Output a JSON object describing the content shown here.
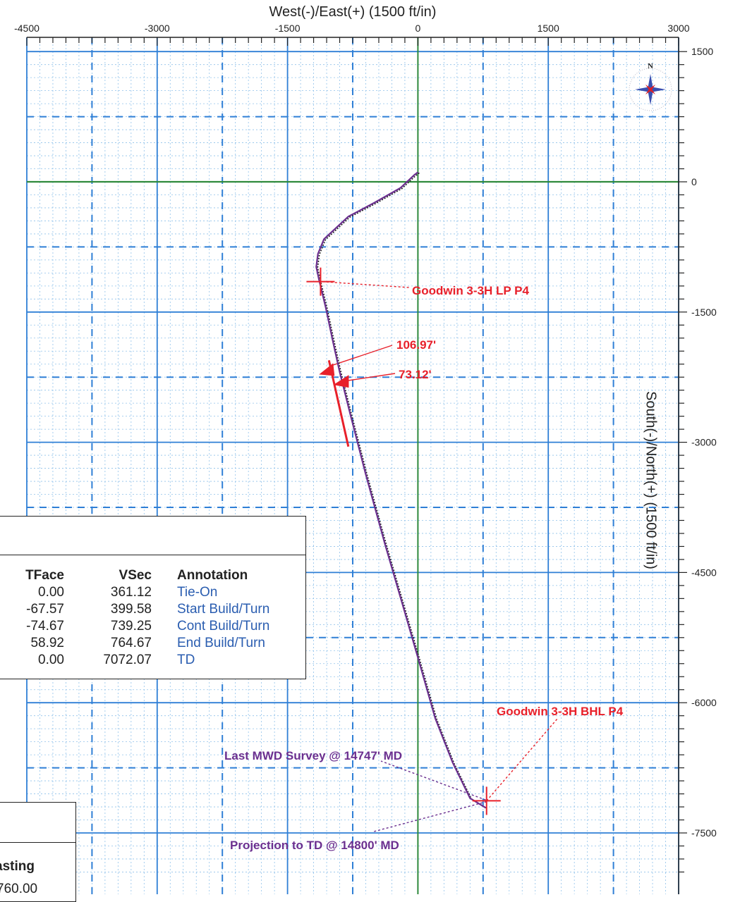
{
  "chart_data": {
    "type": "line",
    "xlabel": "West(-)/East(+) (1500 ft/in)",
    "ylabel": "South(-)/North(+) (1500 ft/in)",
    "xlim": [
      -4500,
      3000
    ],
    "ylim": [
      -8000,
      1500
    ],
    "x_ticks": [
      -4500,
      -3000,
      -1500,
      0,
      1500,
      3000
    ],
    "y_ticks": [
      1500,
      0,
      -1500,
      -3000,
      -4500,
      -6000,
      -7500
    ],
    "grid": true,
    "series": [
      {
        "x": [
          0,
          -40,
          -200,
          -500,
          -800,
          -1080,
          -1150,
          -1170,
          -1140,
          -1060,
          -980,
          -900,
          -780,
          -600,
          -380,
          -150,
          0,
          200,
          400,
          600,
          780
        ],
        "y": [
          110,
          80,
          -70,
          -240,
          -400,
          -660,
          -830,
          -980,
          -1120,
          -1450,
          -1830,
          -2190,
          -2670,
          -3370,
          -4170,
          -4960,
          -5480,
          -6180,
          -6690,
          -7100,
          -7210
        ]
      }
    ],
    "targets": [
      {
        "label": "Goodwin 3-3H LP P4",
        "x": -1120,
        "y": -1150
      },
      {
        "label": "Goodwin 3-3H BHL P4",
        "x": 790,
        "y": -7130
      }
    ],
    "annotations": [
      {
        "text": "Goodwin 3-3H LP P4",
        "color": "#e8202a"
      },
      {
        "text": "106.97'",
        "color": "#e8202a"
      },
      {
        "text": "73.12'",
        "color": "#e8202a"
      },
      {
        "text": "Goodwin 3-3H BHL P4",
        "color": "#e8202a"
      },
      {
        "text": "Last MWD Survey @ 14747' MD",
        "color": "#6b2f8f"
      },
      {
        "text": "Projection to TD @ 14800' MD",
        "color": "#6b2f8f"
      }
    ],
    "colors": {
      "major_grid": "#2f7fd6",
      "dashed_grid": "#2f7fd6",
      "minor_grid": "#8fc1ea",
      "zero_lines": "#2f8a3c",
      "well_path": "#6b2f8f",
      "target": "#e8202a"
    }
  },
  "table": {
    "headers": {
      "tface": "TFace",
      "vsec": "VSec",
      "annotation": "Annotation"
    },
    "rows": [
      {
        "tface": "0.00",
        "vsec": "361.12",
        "annotation": "Tie-On"
      },
      {
        "tface": "-67.57",
        "vsec": "399.58",
        "annotation": "Start Build/Turn"
      },
      {
        "tface": "-74.67",
        "vsec": "739.25",
        "annotation": "Cont Build/Turn"
      },
      {
        "tface": "58.92",
        "vsec": "764.67",
        "annotation": "End Build/Turn"
      },
      {
        "tface": "0.00",
        "vsec": "7072.07",
        "annotation": "TD"
      }
    ]
  },
  "small_table": {
    "header": "asting",
    "value": "760.00"
  },
  "compass": {
    "north_label": "N",
    "icon": "compass-rose-icon"
  }
}
